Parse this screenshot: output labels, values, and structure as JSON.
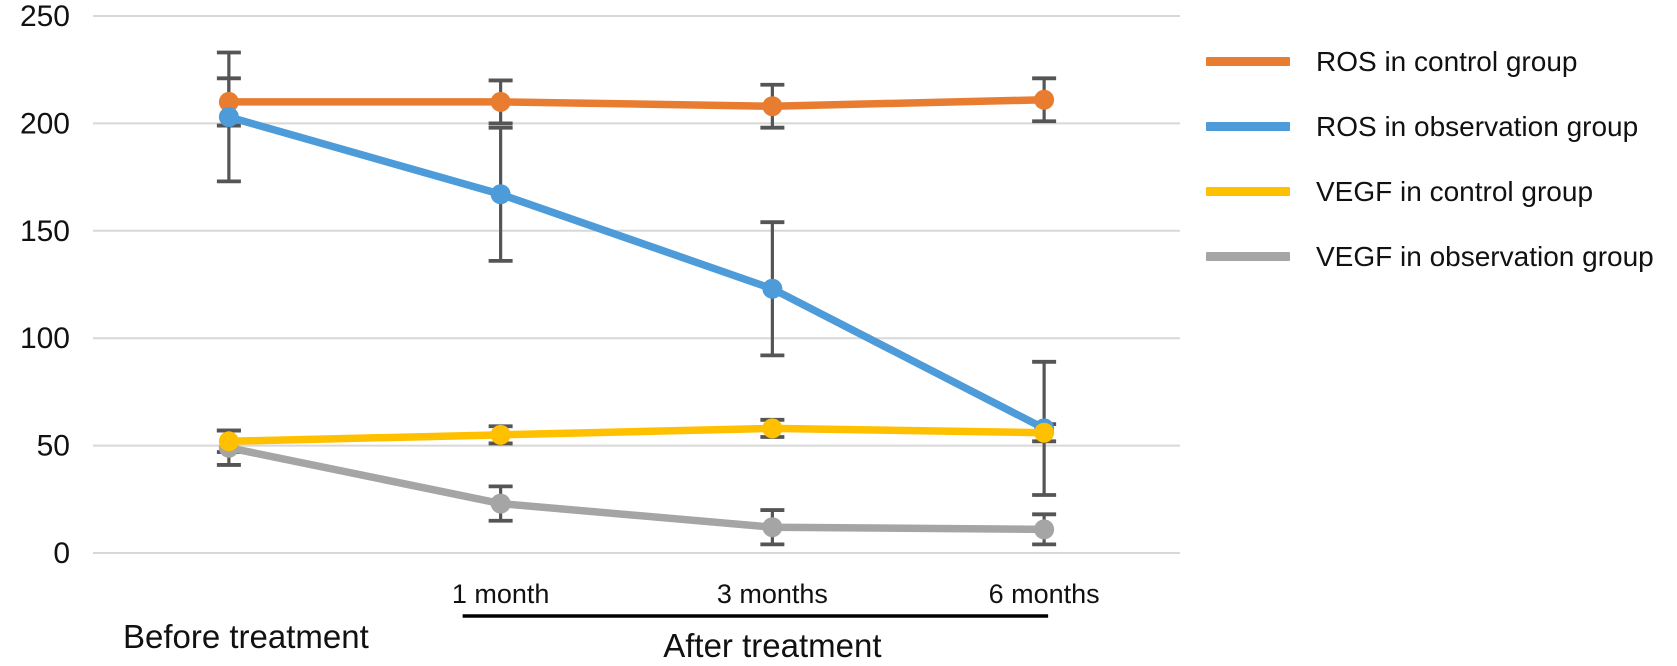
{
  "figure": {
    "background": "#FFFFFF",
    "text_color": "#111111"
  },
  "chart_data": {
    "type": "line",
    "categories": [
      "Before treatment",
      "1 month",
      "3 months",
      "6 months"
    ],
    "x_tick_labels": [
      "",
      "1 month",
      "3 months",
      "6 months"
    ],
    "series": [
      {
        "name": "ROS in control group",
        "color": "#E87D31",
        "values": [
          210,
          210,
          208,
          211
        ],
        "errors": [
          11,
          10,
          10,
          10
        ]
      },
      {
        "name": "ROS in observation group",
        "color": "#4D9BD8",
        "values": [
          203,
          167,
          123,
          58
        ],
        "errors": [
          30,
          31,
          31,
          31
        ]
      },
      {
        "name": "VEGF in control group",
        "color": "#FFC000",
        "values": [
          52,
          55,
          58,
          56
        ],
        "errors": [
          5,
          4,
          4,
          4
        ]
      },
      {
        "name": "VEGF in observation group",
        "color": "#A5A5A5",
        "values": [
          49,
          23,
          12,
          11
        ],
        "errors": [
          8,
          8,
          8,
          7
        ]
      }
    ],
    "ylim": [
      0,
      250
    ],
    "y_tick_step": 50,
    "y_tick_labels": [
      "0",
      "50",
      "100",
      "150",
      "200",
      "250"
    ],
    "xlabel": "",
    "ylabel": "",
    "title": "",
    "group_labels": {
      "before": "Before treatment",
      "after": "After treatment"
    },
    "grid": true,
    "legend_position": "right",
    "gridline_color": "#D8D8D8",
    "errorbar_color": "#555555",
    "bracket_color": "#000000",
    "draw_order": [
      0,
      1,
      3,
      2
    ]
  }
}
